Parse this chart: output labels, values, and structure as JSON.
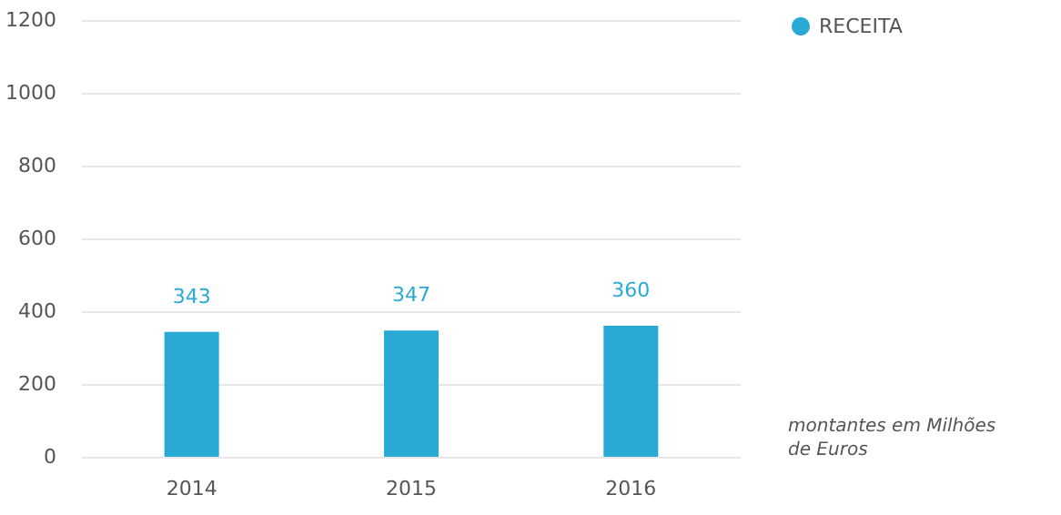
{
  "chart_data": {
    "type": "bar",
    "categories": [
      "2014",
      "2015",
      "2016"
    ],
    "series": [
      {
        "name": "RECEITA",
        "color": "#29aad4",
        "values": [
          343,
          347,
          360
        ]
      }
    ],
    "ylim": [
      0,
      1200
    ],
    "yticks": [
      0,
      200,
      400,
      600,
      800,
      1000,
      1200
    ],
    "grid": "y",
    "legend": "top right",
    "data_labels": true,
    "annotations": [
      "montantes em Milhões de Euros"
    ]
  }
}
